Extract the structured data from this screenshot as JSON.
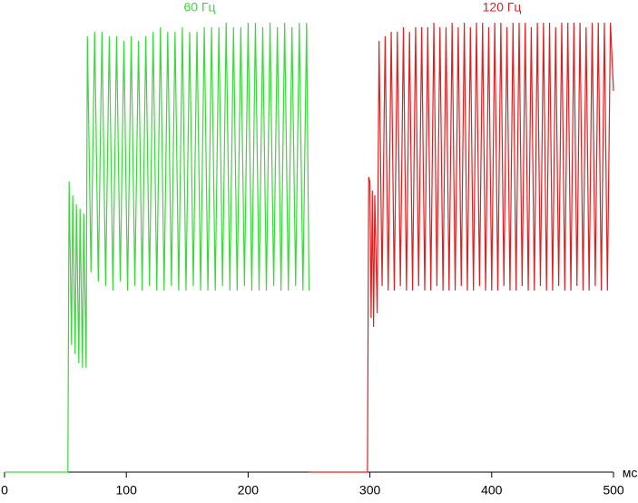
{
  "chart_data": {
    "type": "line",
    "xlabel": "мс",
    "xlim": [
      0,
      500
    ],
    "xticks": [
      0,
      100,
      200,
      300,
      400,
      500
    ],
    "ylim": [
      0,
      100
    ],
    "series": [
      {
        "name": "60 Гц",
        "color": "#3ad83a",
        "x": [
          0,
          52,
          53,
          55,
          56,
          58,
          59,
          61,
          62,
          64,
          65,
          67,
          68,
          71,
          74,
          77,
          80,
          83,
          86,
          89,
          92,
          95,
          98,
          101,
          104,
          107,
          110,
          113,
          116,
          119,
          122,
          125,
          128,
          131,
          134,
          137,
          140,
          143,
          146,
          149,
          152,
          155,
          158,
          161,
          164,
          167,
          170,
          173,
          176,
          179,
          182,
          185,
          188,
          191,
          194,
          197,
          200,
          203,
          206,
          209,
          212,
          215,
          218,
          221,
          224,
          227,
          230,
          233,
          236,
          239,
          242,
          245,
          248,
          250
        ],
        "values": [
          0,
          0,
          64,
          28,
          61,
          26,
          59,
          24,
          58,
          23,
          57,
          23,
          96,
          44,
          97,
          42,
          97,
          41,
          96,
          40,
          96,
          42,
          95,
          40,
          96,
          41,
          95,
          40,
          96,
          41,
          97,
          40,
          98,
          40,
          97,
          41,
          97,
          40,
          98,
          40,
          97,
          41,
          97,
          40,
          98,
          40,
          98,
          40,
          98,
          41,
          99,
          40,
          98,
          40,
          98,
          41,
          99,
          40,
          99,
          40,
          98,
          40,
          99,
          41,
          98,
          40,
          99,
          40,
          98,
          41,
          99,
          40,
          99,
          40
        ],
        "value_labels": null
      },
      {
        "name": "120 Гц",
        "color": "#e02020",
        "x": [
          250,
          298,
          299,
          300,
          301,
          302,
          303,
          304,
          306,
          307.5,
          310,
          312.5,
          315,
          317.5,
          320,
          322.5,
          325,
          327.5,
          330,
          332.5,
          335,
          337.5,
          340,
          342.5,
          345,
          347.5,
          350,
          352.5,
          355,
          357.5,
          360,
          362.5,
          365,
          367.5,
          370,
          372.5,
          375,
          377.5,
          380,
          382.5,
          385,
          387.5,
          390,
          392.5,
          395,
          397.5,
          400,
          402.5,
          405,
          407.5,
          410,
          412.5,
          415,
          417.5,
          420,
          422.5,
          425,
          427.5,
          430,
          432.5,
          435,
          437.5,
          440,
          442.5,
          445,
          447.5,
          450,
          452.5,
          455,
          457.5,
          460,
          462.5,
          465,
          467.5,
          470,
          472.5,
          475,
          477.5,
          480,
          482.5,
          485,
          487.5,
          490,
          492.5,
          495,
          497.5,
          500
        ],
        "values": [
          0,
          0,
          65,
          64,
          34,
          62,
          32,
          61,
          35,
          95,
          41,
          96,
          40,
          97,
          40,
          97,
          41,
          98,
          40,
          97,
          40,
          98,
          41,
          98,
          40,
          98,
          40,
          99,
          41,
          98,
          40,
          98,
          40,
          99,
          40,
          98,
          41,
          99,
          40,
          98,
          40,
          99,
          41,
          99,
          40,
          98,
          40,
          99,
          40,
          99,
          41,
          98,
          40,
          99,
          40,
          99,
          41,
          99,
          40,
          98,
          40,
          99,
          41,
          99,
          40,
          99,
          40,
          98,
          41,
          99,
          40,
          99,
          40,
          99,
          41,
          99,
          40,
          98,
          40,
          99,
          41,
          99,
          40,
          99,
          40,
          99,
          84
        ]
      }
    ]
  }
}
